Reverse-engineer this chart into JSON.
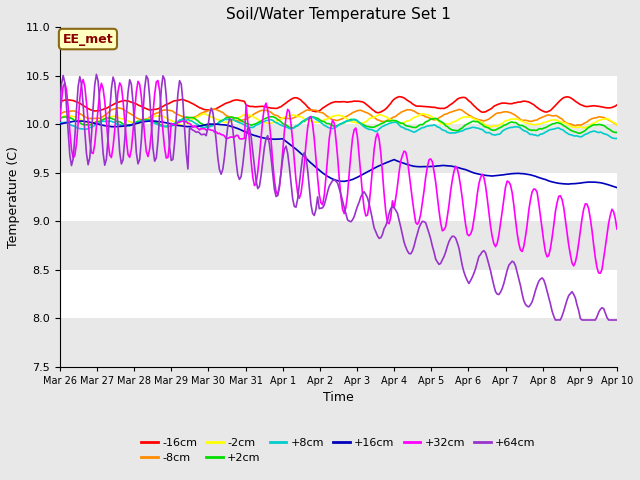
{
  "title": "Soil/Water Temperature Set 1",
  "xlabel": "Time",
  "ylabel": "Temperature (C)",
  "ylim": [
    7.5,
    11.0
  ],
  "annotation": "EE_met",
  "annotation_color": "#8B0000",
  "annotation_bg": "#FFFFC0",
  "annotation_border": "#8B6914",
  "background_color": "#E8E8E8",
  "series_colors": {
    "-16cm": "#FF0000",
    "-8cm": "#FF8C00",
    "-2cm": "#FFFF00",
    "+2cm": "#00DD00",
    "+8cm": "#00CCCC",
    "+16cm": "#0000BB",
    "+32cm": "#FF00FF",
    "+64cm": "#9933CC"
  },
  "tick_labels": [
    "Mar 26",
    "Mar 27",
    "Mar 28",
    "Mar 29",
    "Mar 30",
    "Mar 31",
    "Apr 1",
    "Apr 2",
    "Apr 3",
    "Apr 4",
    "Apr 5",
    "Apr 6",
    "Apr 7",
    "Apr 8",
    "Apr 9",
    "Apr 10"
  ],
  "bands": [
    [
      7.5,
      8.0,
      "#E8E8E8"
    ],
    [
      8.0,
      8.5,
      "#FFFFFF"
    ],
    [
      8.5,
      9.0,
      "#E8E8E8"
    ],
    [
      9.0,
      9.5,
      "#FFFFFF"
    ],
    [
      9.5,
      10.0,
      "#E8E8E8"
    ],
    [
      10.0,
      10.5,
      "#FFFFFF"
    ],
    [
      10.5,
      11.0,
      "#E8E8E8"
    ]
  ],
  "n_points": 336,
  "end_day": 15
}
